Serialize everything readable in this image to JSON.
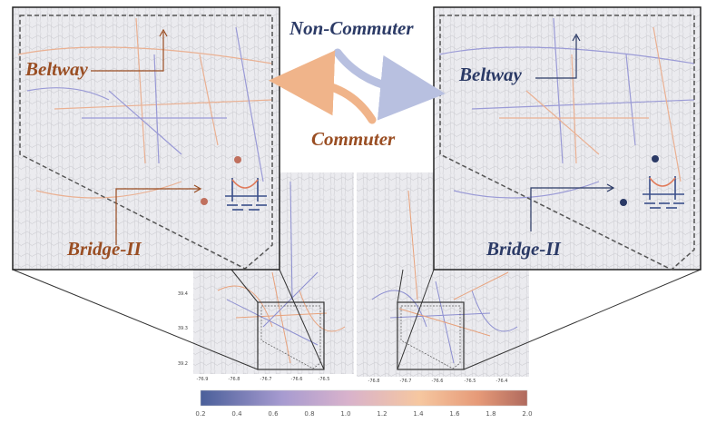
{
  "labels": {
    "non_commuter": "Non-Commuter",
    "commuter": "Commuter",
    "left_beltway": "Beltway",
    "left_bridge": "Bridge-II",
    "right_beltway": "Beltway",
    "right_bridge": "Bridge-II"
  },
  "colors": {
    "commuter": "#9a4e23",
    "non_commuter": "#2b3a66",
    "commuter_arrow": "#f0b48a",
    "non_commuter_arrow": "#b8c0e0",
    "map_bg": "#ebebef"
  },
  "left_map": {
    "y_ticks": [
      "39.4",
      "39.3",
      "39.2"
    ],
    "x_ticks": [
      "-76.9",
      "-76.8",
      "-76.7",
      "-76.6",
      "-76.5"
    ]
  },
  "right_map": {
    "x_ticks": [
      "-76.8",
      "-76.7",
      "-76.6",
      "-76.5",
      "-76.4"
    ]
  },
  "colorbar": {
    "ticks": [
      "0.2",
      "0.4",
      "0.6",
      "0.8",
      "1.0",
      "1.2",
      "1.4",
      "1.6",
      "1.8",
      "2.0"
    ],
    "range": [
      0.2,
      2.0
    ],
    "colors": [
      "#4a5f9a",
      "#a79bd0",
      "#d8b2cc",
      "#f6c7a0",
      "#e69a78",
      "#b06a5e"
    ]
  },
  "icons": [
    "bridge-icon",
    "curved-arrow-icon"
  ]
}
